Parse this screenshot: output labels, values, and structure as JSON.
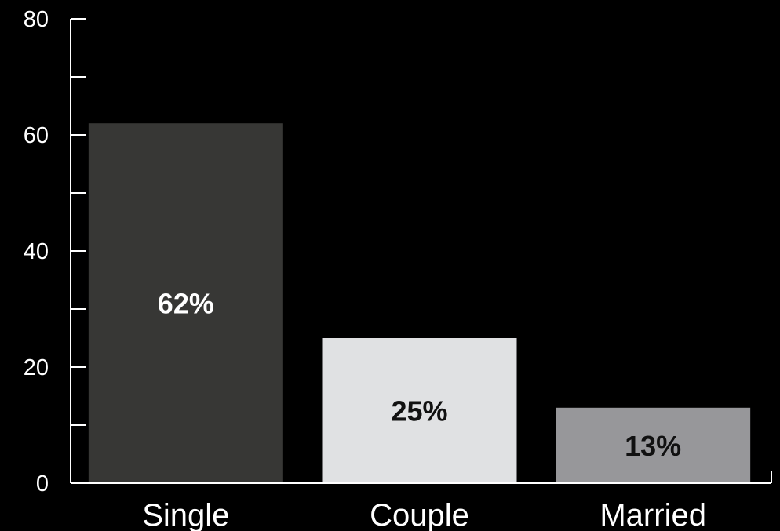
{
  "chart_data": {
    "type": "bar",
    "categories": [
      "Single",
      "Couple",
      "Married"
    ],
    "values": [
      62,
      25,
      13
    ],
    "data_labels": [
      "62%",
      "25%",
      "13%"
    ],
    "ylim": [
      0,
      80
    ],
    "major_ticks": [
      0,
      20,
      40,
      60,
      80
    ],
    "minor_ticks": [
      10,
      30,
      50,
      70
    ],
    "grid": false,
    "background": "#000000",
    "axis_color": "#ffffff",
    "bar_colors": [
      "#373735",
      "#e0e1e3",
      "#97979a"
    ],
    "label_colors": [
      "#ffffff",
      "#111111",
      "#111111"
    ]
  }
}
